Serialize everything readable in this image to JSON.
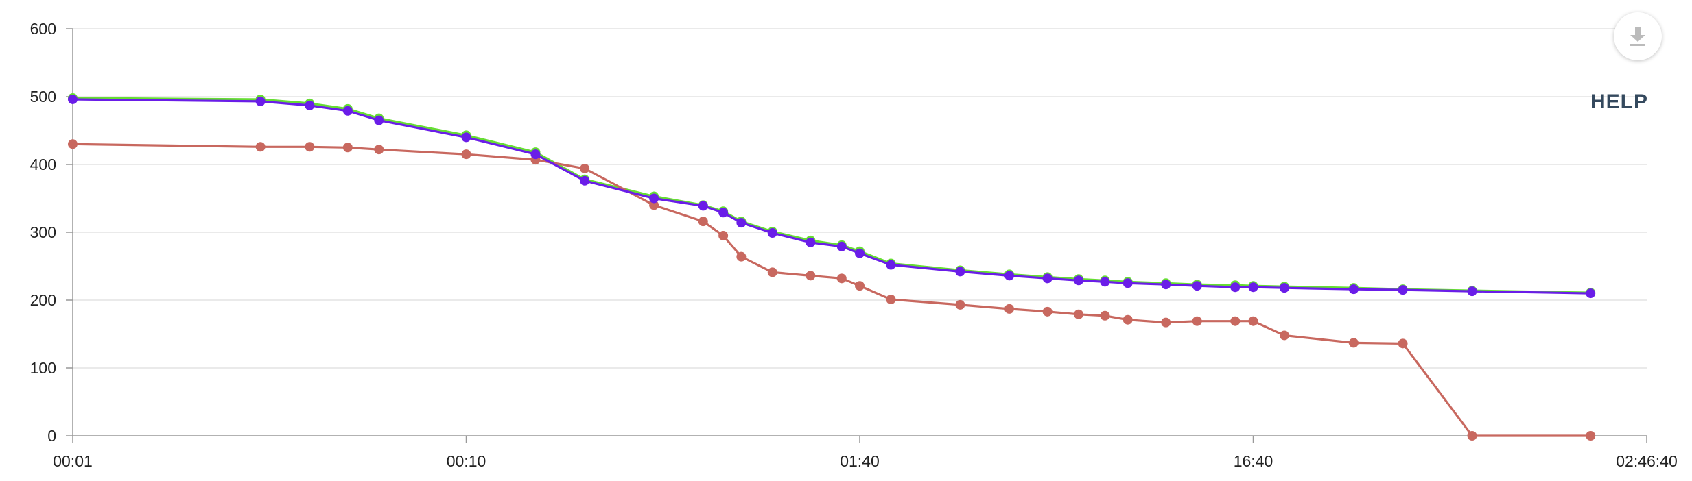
{
  "ui": {
    "help_label": "HELP",
    "download_icon": "download-icon"
  },
  "colors": {
    "green": "#66dd33",
    "purple": "#6a1de8",
    "red": "#c8685f",
    "grid": "#dddddd",
    "axis": "#999999"
  },
  "chart_data": {
    "type": "line",
    "title": "",
    "xlabel": "",
    "ylabel": "",
    "ylim": [
      0,
      600
    ],
    "y_ticks": [
      "0",
      "100",
      "200",
      "300",
      "400",
      "500",
      "600"
    ],
    "x_scale": "log",
    "x_unit": "seconds",
    "x_ticks": [
      {
        "label": "00:01",
        "x": 1
      },
      {
        "label": "00:10",
        "x": 10
      },
      {
        "label": "01:40",
        "x": 100
      },
      {
        "label": "16:40",
        "x": 1000
      },
      {
        "label": "02:46:40",
        "x": 10000
      }
    ],
    "grid": true,
    "legend": "none",
    "series": [
      {
        "color": "green",
        "x": [
          1,
          3,
          4,
          5,
          6,
          10,
          15,
          20,
          30,
          40,
          45,
          50,
          60,
          75,
          90,
          100,
          120,
          180,
          240,
          300,
          360,
          420,
          480,
          600,
          720,
          900,
          1000,
          1200,
          1800,
          2400,
          3600,
          7200
        ],
        "y": [
          498,
          496,
          490,
          482,
          468,
          443,
          418,
          378,
          353,
          340,
          331,
          316,
          301,
          288,
          281,
          272,
          254,
          244,
          238,
          234,
          231,
          229,
          227,
          225,
          223,
          222,
          221,
          220,
          218,
          216,
          214,
          211
        ]
      },
      {
        "color": "red",
        "x": [
          1,
          3,
          4,
          5,
          6,
          10,
          15,
          20,
          30,
          40,
          45,
          50,
          60,
          75,
          90,
          100,
          120,
          180,
          240,
          300,
          360,
          420,
          480,
          600,
          720,
          900,
          1000,
          1200,
          1800,
          2400,
          3600,
          7200
        ],
        "y": [
          430,
          426,
          426,
          425,
          422,
          415,
          407,
          394,
          340,
          316,
          295,
          264,
          241,
          236,
          232,
          221,
          201,
          193,
          187,
          183,
          179,
          177,
          171,
          167,
          169,
          169,
          169,
          148,
          137,
          136,
          0,
          0
        ]
      },
      {
        "color": "purple",
        "x": [
          1,
          3,
          4,
          5,
          6,
          10,
          15,
          20,
          30,
          40,
          45,
          50,
          60,
          75,
          90,
          100,
          120,
          180,
          240,
          300,
          360,
          420,
          480,
          600,
          720,
          900,
          1000,
          1200,
          1800,
          2400,
          3600,
          7200
        ],
        "y": [
          496,
          493,
          487,
          479,
          465,
          440,
          415,
          376,
          350,
          339,
          329,
          314,
          299,
          285,
          279,
          269,
          252,
          242,
          236,
          232,
          229,
          227,
          225,
          223,
          221,
          219,
          219,
          218,
          216,
          215,
          213,
          210
        ]
      }
    ]
  }
}
